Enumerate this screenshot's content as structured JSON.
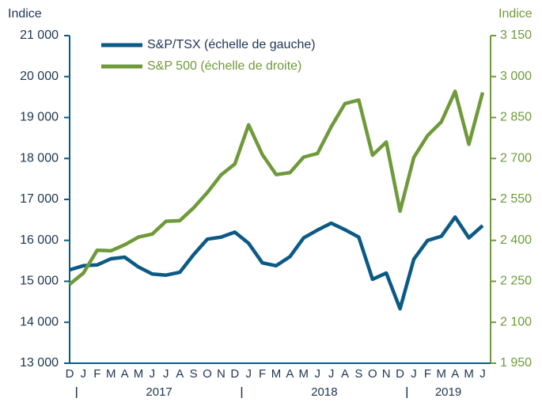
{
  "chart_data": {
    "type": "line",
    "y_axis_label": "Indice",
    "y2_axis_label": "Indice",
    "categories": [
      "D",
      "J",
      "F",
      "M",
      "A",
      "M",
      "J",
      "J",
      "A",
      "S",
      "O",
      "N",
      "D",
      "J",
      "F",
      "M",
      "A",
      "M",
      "J",
      "J",
      "A",
      "S",
      "O",
      "N",
      "D",
      "J",
      "F",
      "M",
      "A",
      "M",
      "J"
    ],
    "years": [
      "2017",
      "2018",
      "2019"
    ],
    "series": [
      {
        "name": "S&P/TSX (échelle de gauche)",
        "color": "#0b5a85",
        "axis": "y",
        "values": [
          15280,
          15380,
          15400,
          15550,
          15590,
          15350,
          15180,
          15150,
          15220,
          15650,
          16030,
          16080,
          16200,
          15930,
          15450,
          15380,
          15600,
          16060,
          16250,
          16420,
          16260,
          16080,
          15050,
          15200,
          14330,
          15540,
          16000,
          16100,
          16570,
          16060,
          16360
        ]
      },
      {
        "name": "S&P 500 (échelle de droite)",
        "color": "#6f9a3a",
        "axis": "y2",
        "values": [
          2239,
          2280,
          2364,
          2362,
          2384,
          2412,
          2423,
          2470,
          2472,
          2519,
          2575,
          2640,
          2680,
          2823,
          2714,
          2641,
          2648,
          2705,
          2718,
          2816,
          2901,
          2914,
          2712,
          2760,
          2507,
          2704,
          2784,
          2834,
          2946,
          2752,
          2942
        ]
      }
    ],
    "ylim": [
      13000,
      21000
    ],
    "yticks": [
      {
        "value": 13000,
        "label": "13 000"
      },
      {
        "value": 14000,
        "label": "14 000"
      },
      {
        "value": 15000,
        "label": "15 000"
      },
      {
        "value": 16000,
        "label": "16 000"
      },
      {
        "value": 17000,
        "label": "17 000"
      },
      {
        "value": 18000,
        "label": "18 000"
      },
      {
        "value": 19000,
        "label": "19 000"
      },
      {
        "value": 20000,
        "label": "20 000"
      },
      {
        "value": 21000,
        "label": "21 000"
      }
    ],
    "y2lim": [
      1950,
      3150
    ],
    "y2ticks": [
      {
        "value": 1950,
        "label": "1 950"
      },
      {
        "value": 2100,
        "label": "2 100"
      },
      {
        "value": 2250,
        "label": "2 250"
      },
      {
        "value": 2400,
        "label": "2 400"
      },
      {
        "value": 2550,
        "label": "2 550"
      },
      {
        "value": 2700,
        "label": "2 700"
      },
      {
        "value": 2850,
        "label": "2 850"
      },
      {
        "value": 3000,
        "label": "3 000"
      },
      {
        "value": 3150,
        "label": "3 150"
      }
    ]
  }
}
